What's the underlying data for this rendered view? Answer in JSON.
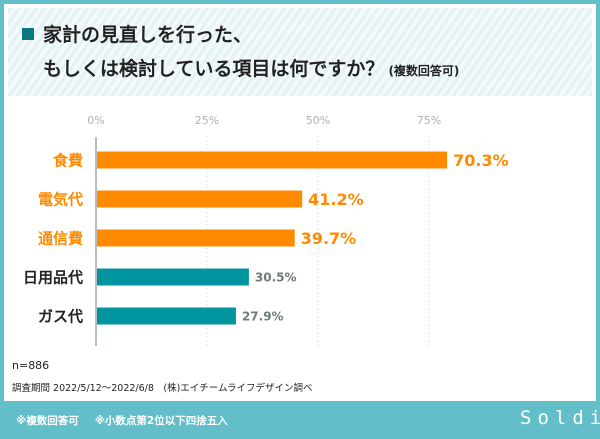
{
  "title": {
    "line1": "家計の見直しを行った、",
    "line2": "もしくは検討している項目は何ですか？",
    "note": "(複数回答可)"
  },
  "chart_data": {
    "type": "bar",
    "orientation": "horizontal",
    "categories": [
      "食費",
      "電気代",
      "通信費",
      "日用品代",
      "ガス代"
    ],
    "values": [
      70.3,
      41.2,
      39.7,
      30.5,
      27.9
    ],
    "data_labels": [
      "70.3%",
      "41.2%",
      "39.7%",
      "30.5%",
      "27.9%"
    ],
    "x_ticks": [
      "0%",
      "25%",
      "50%",
      "75%"
    ],
    "xlim": [
      0,
      100
    ],
    "grid": true,
    "colors": [
      "#ff8a00",
      "#ff8a00",
      "#ff8a00",
      "#00959f",
      "#00959f"
    ],
    "label_colors": [
      "#ff8a00",
      "#ff8a00",
      "#ff8a00",
      "#222222",
      "#222222"
    ],
    "value_colors": [
      "#ff8a00",
      "#ff8a00",
      "#ff8a00",
      "#6d7b7c",
      "#6d7b7c"
    ]
  },
  "footer": {
    "n": "n=886",
    "period": "調査期間 2022/5/12〜2022/6/8　(株)エイチームライフデザイン調べ",
    "notes": [
      "※複数回答可",
      "※小数点第2位以下四捨五入"
    ],
    "logo": "Soldi"
  }
}
